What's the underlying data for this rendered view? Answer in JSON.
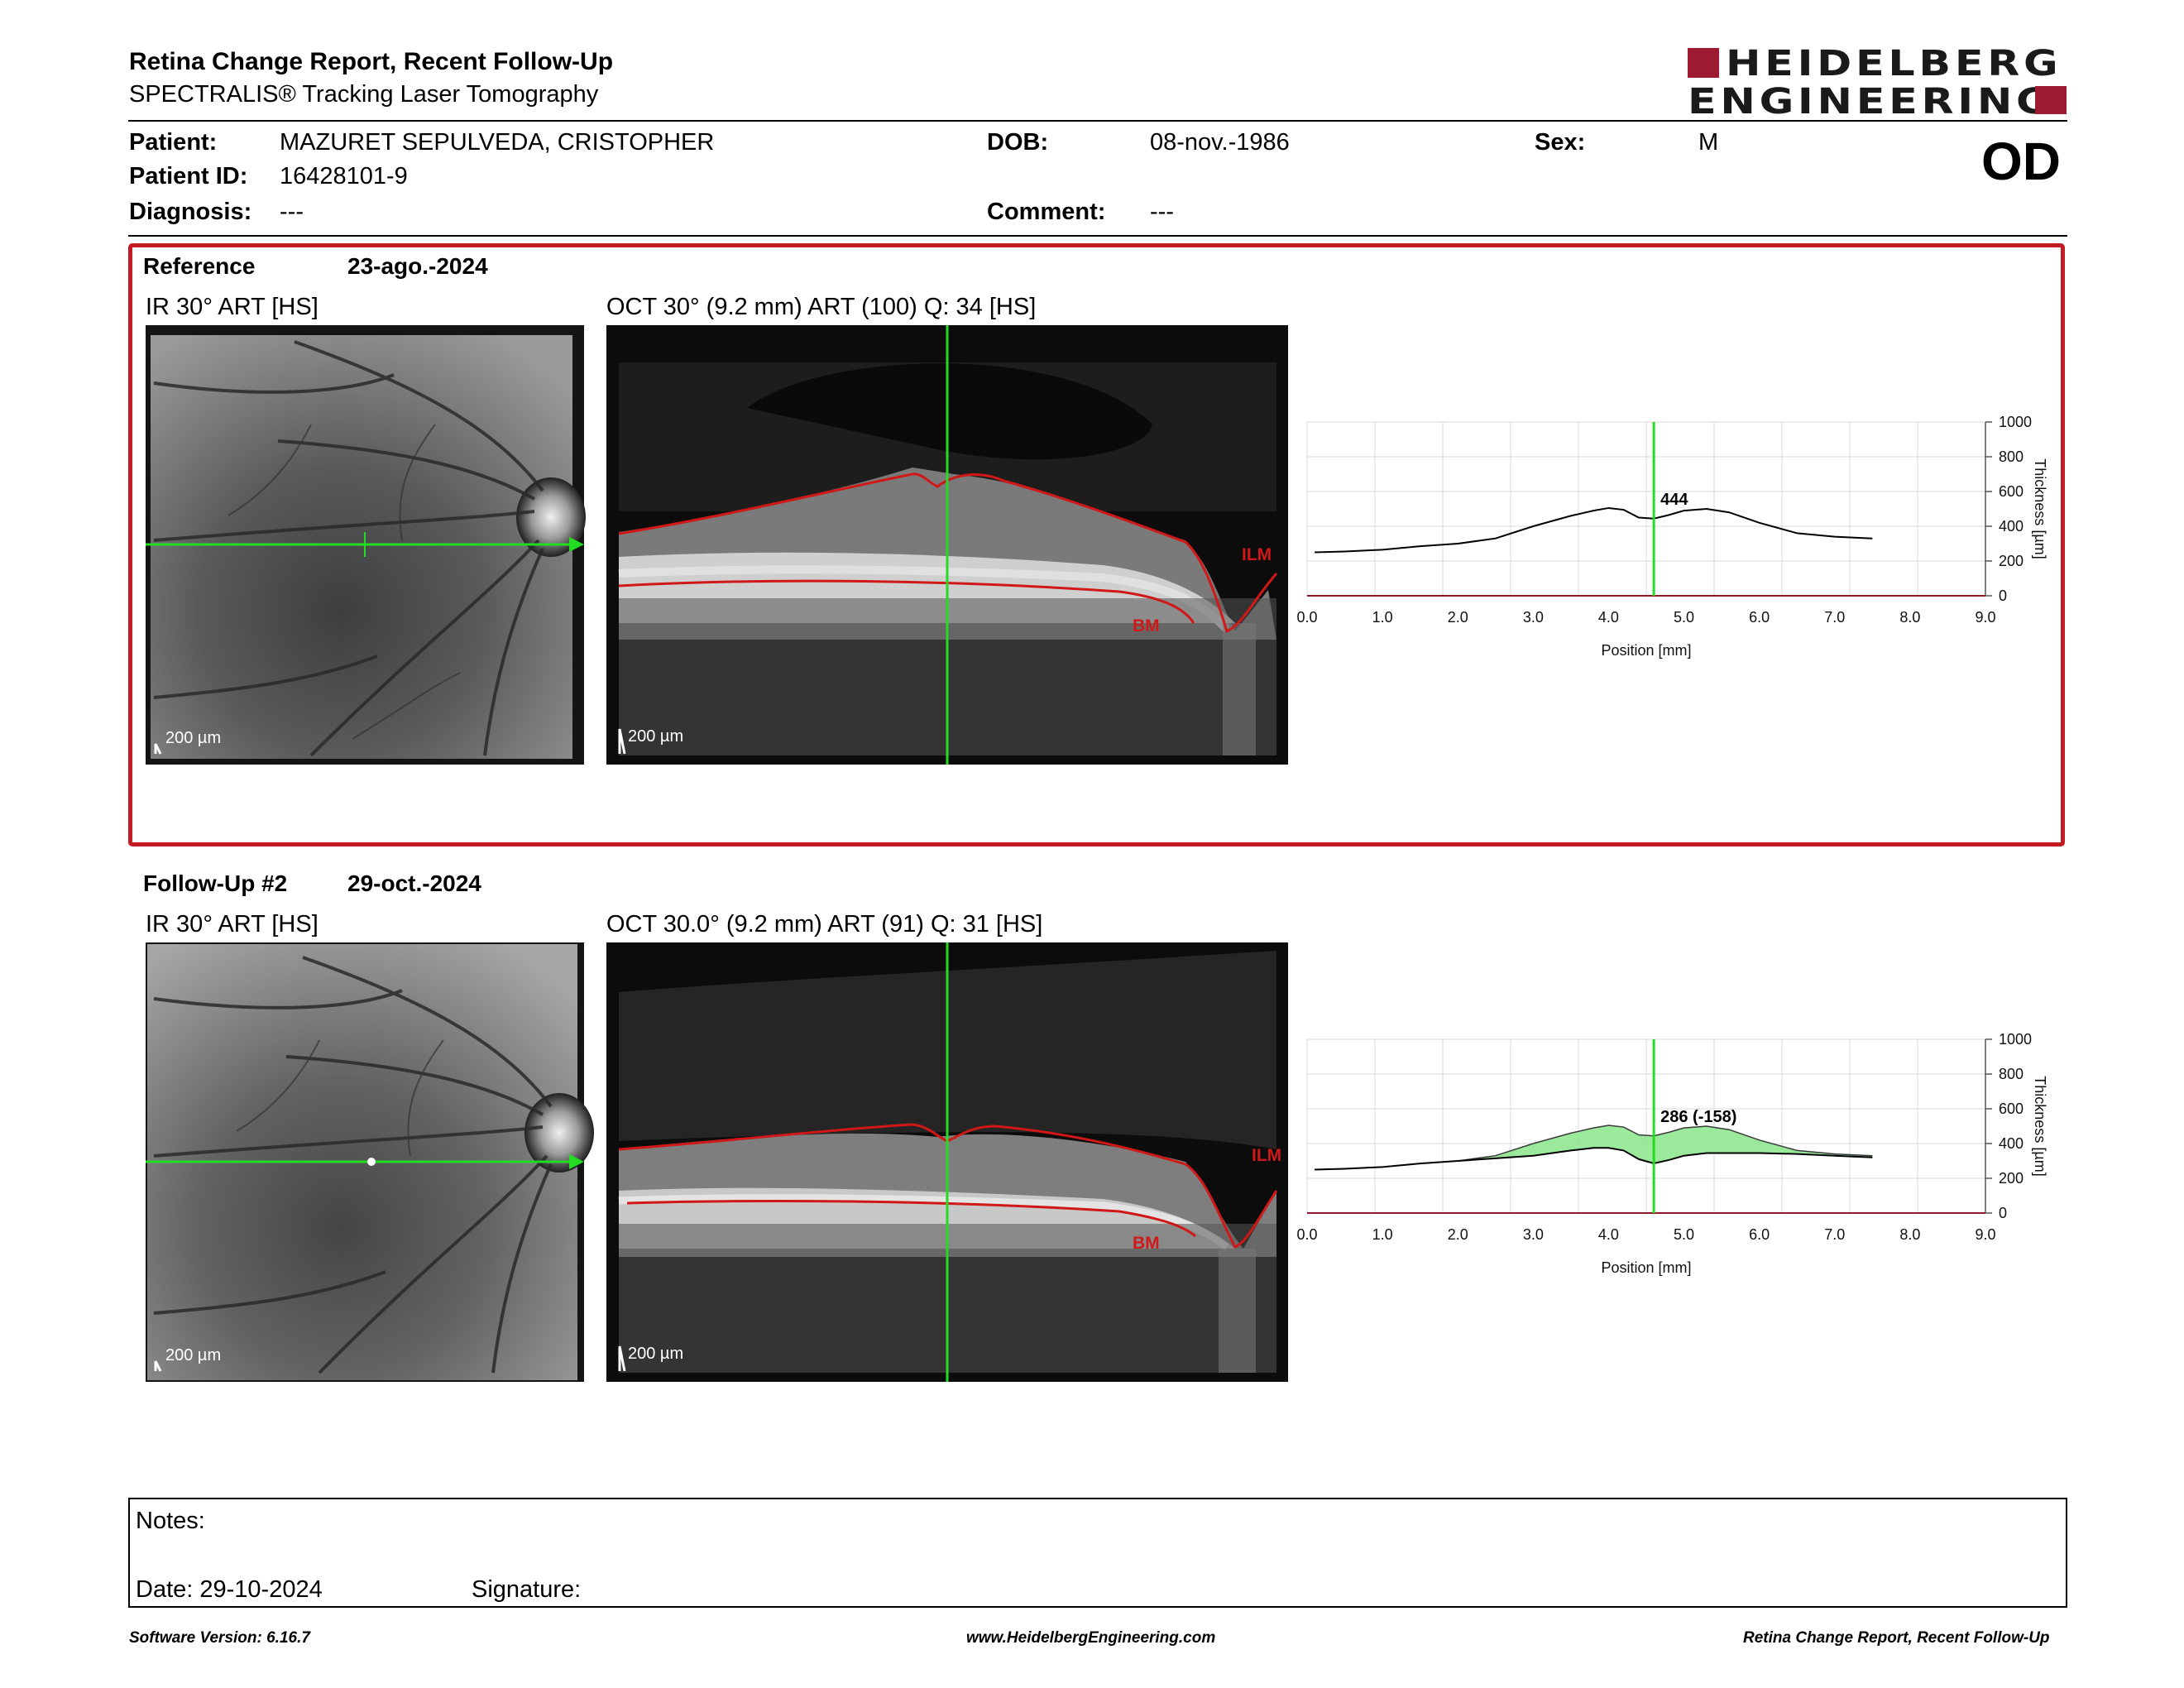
{
  "header": {
    "title": "Retina Change Report, Recent Follow-Up",
    "subtitle": "SPECTRALIS® Tracking Laser Tomography",
    "logo_line1": "HEIDELBERG",
    "logo_line2": "ENGINEERING",
    "eye": "OD"
  },
  "patient": {
    "patient_label": "Patient:",
    "patient_value": "MAZURET SEPULVEDA, CRISTOPHER",
    "id_label": "Patient ID:",
    "id_value": "16428101-9",
    "diagnosis_label": "Diagnosis:",
    "diagnosis_value": "---",
    "dob_label": "DOB:",
    "dob_value": "08-nov.-1986",
    "comment_label": "Comment:",
    "comment_value": "---",
    "sex_label": "Sex:",
    "sex_value": "M"
  },
  "reference": {
    "label": "Reference",
    "date": "23-ago.-2024",
    "ir_title": "IR 30° ART [HS]",
    "oct_title": "OCT 30° (9.2 mm) ART (100) Q: 34 [HS]",
    "scale_ir": "200 µm",
    "scale_oct": "200 µm",
    "ilm_label": "ILM",
    "bm_label": "BM",
    "thickness_value": "444"
  },
  "followup": {
    "label": "Follow-Up #2",
    "date": "29-oct.-2024",
    "ir_title": "IR 30° ART [HS]",
    "oct_title": "OCT 30.0° (9.2 mm) ART (91) Q: 31 [HS]",
    "scale_ir": "200 µm",
    "scale_oct": "200 µm",
    "ilm_label": "ILM",
    "bm_label": "BM",
    "thickness_value": "286 (-158)"
  },
  "chart_data": [
    {
      "type": "line",
      "xlabel": "Position [mm]",
      "ylabel": "Thickness [µm]",
      "xlim": [
        0,
        9
      ],
      "ylim": [
        0,
        1000
      ],
      "xticks": [
        "0.0",
        "1.0",
        "2.0",
        "3.0",
        "4.0",
        "5.0",
        "6.0",
        "7.0",
        "8.0",
        "9.0"
      ],
      "yticks": [
        "0",
        "200",
        "400",
        "600",
        "800",
        "1000"
      ],
      "grid": true,
      "cursor_x": 4.6,
      "cursor_label": "444",
      "series": [
        {
          "x": [
            0.1,
            0.5,
            1.0,
            1.5,
            2.0,
            2.5,
            3.0,
            3.5,
            3.8,
            4.0,
            4.2,
            4.4,
            4.6,
            4.8,
            5.0,
            5.3,
            5.6,
            6.0,
            6.5,
            7.0,
            7.5
          ],
          "y": [
            250,
            255,
            265,
            285,
            300,
            330,
            400,
            460,
            490,
            505,
            495,
            450,
            444,
            465,
            490,
            500,
            480,
            420,
            360,
            340,
            330
          ]
        }
      ]
    },
    {
      "type": "area",
      "xlabel": "Position [mm]",
      "ylabel": "Thickness [µm]",
      "xlim": [
        0,
        9
      ],
      "ylim": [
        0,
        1000
      ],
      "xticks": [
        "0.0",
        "1.0",
        "2.0",
        "3.0",
        "4.0",
        "5.0",
        "6.0",
        "7.0",
        "8.0",
        "9.0"
      ],
      "yticks": [
        "0",
        "200",
        "400",
        "600",
        "800",
        "1000"
      ],
      "grid": true,
      "cursor_x": 4.6,
      "cursor_label": "286 (-158)",
      "series": [
        {
          "x": [
            0.1,
            0.5,
            1.0,
            1.5,
            2.0,
            2.5,
            3.0,
            3.5,
            3.8,
            4.0,
            4.2,
            4.4,
            4.6,
            4.8,
            5.0,
            5.3,
            5.6,
            6.0,
            6.5,
            7.0,
            7.5
          ],
          "y": [
            250,
            255,
            265,
            285,
            300,
            315,
            330,
            360,
            375,
            375,
            360,
            310,
            286,
            305,
            330,
            345,
            345,
            345,
            340,
            330,
            320
          ]
        },
        {
          "x": [
            0.1,
            0.5,
            1.0,
            1.5,
            2.0,
            2.5,
            3.0,
            3.5,
            3.8,
            4.0,
            4.2,
            4.4,
            4.6,
            4.8,
            5.0,
            5.3,
            5.6,
            6.0,
            6.5,
            7.0,
            7.5
          ],
          "y": [
            250,
            255,
            265,
            285,
            300,
            330,
            400,
            460,
            490,
            505,
            495,
            450,
            444,
            465,
            490,
            500,
            480,
            420,
            360,
            340,
            330
          ]
        }
      ],
      "fill_color": "#90e890"
    }
  ],
  "notes": {
    "notes_label": "Notes:",
    "date_label": "Date: 29-10-2024",
    "signature_label": "Signature:"
  },
  "footer": {
    "left": "Software Version: 6.16.7",
    "center": "www.HeidelbergEngineering.com",
    "right": "Retina Change Report, Recent Follow-Up"
  },
  "colors": {
    "reference_frame": "#c41a22",
    "cursor_green": "#22dd22",
    "layer_red": "#d01818",
    "brand": "#9c1b30"
  }
}
